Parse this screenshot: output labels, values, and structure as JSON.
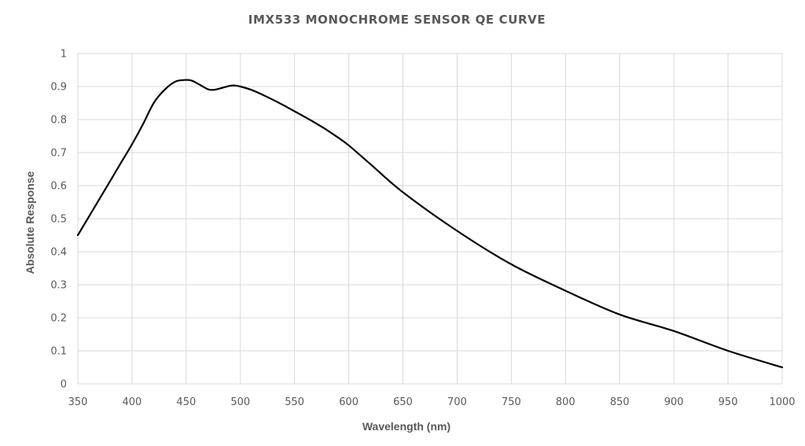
{
  "chart_data": {
    "type": "line",
    "title": "IMX533 MONOCHROME SENSOR QE CURVE",
    "xlabel": "Wavelength (nm)",
    "ylabel": "Absolute Response",
    "xlim": [
      350,
      1000
    ],
    "ylim": [
      0,
      1
    ],
    "xticks": [
      350,
      400,
      450,
      500,
      550,
      600,
      650,
      700,
      750,
      800,
      850,
      900,
      950,
      1000
    ],
    "yticks": [
      0,
      0.1,
      0.2,
      0.3,
      0.4,
      0.5,
      0.6,
      0.7,
      0.8,
      0.9,
      1
    ],
    "grid": true,
    "legend": "none",
    "series": [
      {
        "color": "#000000",
        "x": [
          350,
          360,
          370,
          380,
          390,
          400,
          410,
          420,
          430,
          440,
          450,
          455,
          460,
          470,
          475,
          480,
          490,
          495,
          500,
          510,
          520,
          530,
          540,
          550,
          560,
          570,
          580,
          590,
          600,
          620,
          650,
          700,
          750,
          800,
          850,
          900,
          950,
          1000
        ],
        "y": [
          0.45,
          0.505,
          0.56,
          0.615,
          0.67,
          0.725,
          0.785,
          0.85,
          0.89,
          0.915,
          0.92,
          0.918,
          0.91,
          0.892,
          0.89,
          0.893,
          0.902,
          0.903,
          0.9,
          0.89,
          0.876,
          0.86,
          0.843,
          0.825,
          0.807,
          0.788,
          0.768,
          0.746,
          0.722,
          0.665,
          0.58,
          0.463,
          0.362,
          0.282,
          0.21,
          0.16,
          0.1,
          0.05
        ]
      }
    ]
  }
}
